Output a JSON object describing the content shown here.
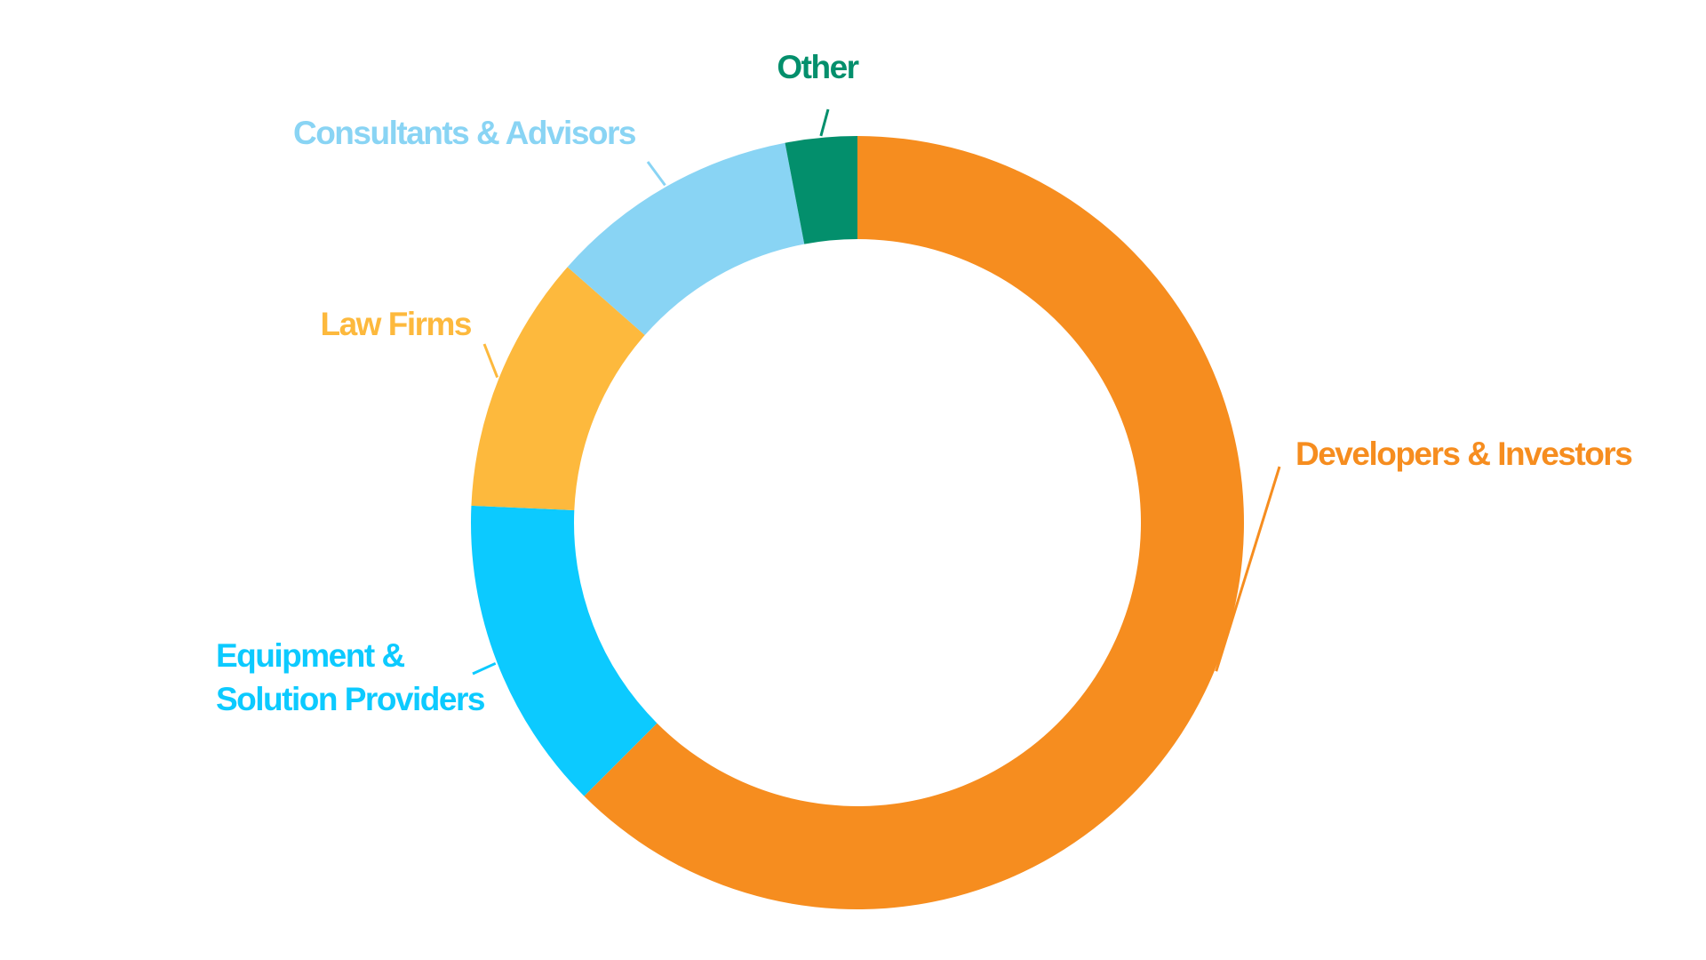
{
  "chart_data": {
    "type": "pie",
    "style": "donut",
    "slices": [
      {
        "label": [
          "Developers & Investors"
        ],
        "value": 62.5,
        "color": "#f68d1f"
      },
      {
        "label": [
          "Equipment &",
          "Solution Providers"
        ],
        "value": 13.2,
        "color": "#0ccaff"
      },
      {
        "label": [
          "Law Firms"
        ],
        "value": 10.8,
        "color": "#fdb93d"
      },
      {
        "label": [
          "Consultants & Advisors"
        ],
        "value": 10.5,
        "color": "#89d4f4"
      },
      {
        "label": [
          "Other"
        ],
        "value": 3.0,
        "color": "#038f6c"
      }
    ],
    "start_angle_deg": 0,
    "direction": "clockwise",
    "legend": "none"
  }
}
